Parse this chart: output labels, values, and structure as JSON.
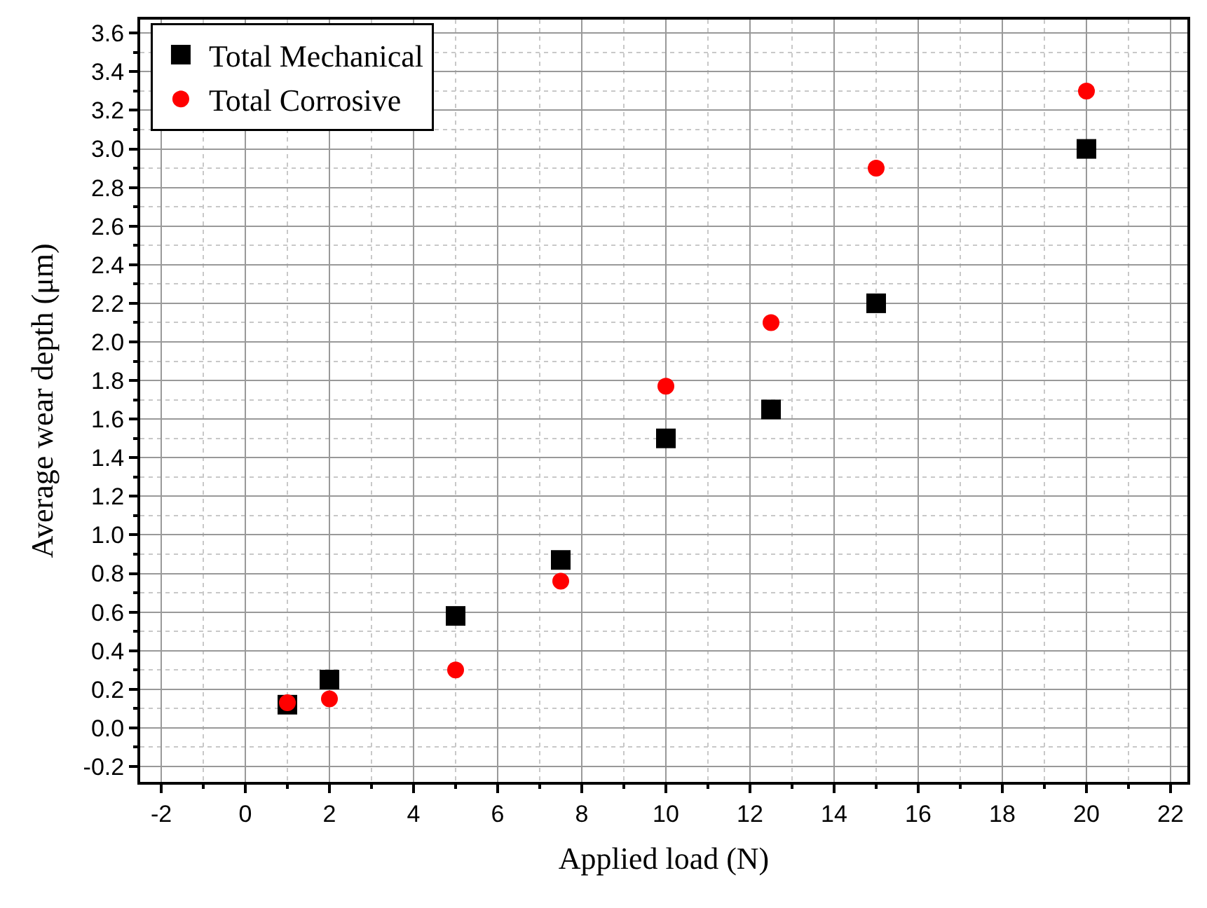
{
  "chart_data": {
    "type": "scatter",
    "xlabel": "Applied load (N)",
    "ylabel": "Average wear depth (μm)",
    "x": [
      1,
      2,
      5,
      7.5,
      10,
      12.5,
      15,
      20
    ],
    "series": [
      {
        "name": "Total Mechanical",
        "color": "#000000",
        "marker": "square",
        "values": [
          0.12,
          0.25,
          0.58,
          0.87,
          1.5,
          1.65,
          2.2,
          3.0
        ]
      },
      {
        "name": "Total Corrosive",
        "color": "#ff0000",
        "marker": "circle",
        "values": [
          0.13,
          0.15,
          0.3,
          0.76,
          1.77,
          2.1,
          2.9,
          3.3
        ]
      }
    ],
    "xlim": [
      -2.5,
      22.4
    ],
    "xticks": [
      -2,
      0,
      2,
      4,
      6,
      8,
      10,
      12,
      14,
      16,
      18,
      20,
      22
    ],
    "ylim": [
      -0.28,
      3.67
    ],
    "yticks": [
      -0.2,
      {
        "value": 0,
        "label": "0.0"
      },
      0.2,
      0.4,
      0.6,
      0.8,
      {
        "value": 1,
        "label": "1.0"
      },
      1.2,
      1.4,
      1.6,
      1.8,
      {
        "value": 2,
        "label": "2.0"
      },
      2.2,
      2.4,
      2.6,
      2.8,
      {
        "value": 3,
        "label": "3.0"
      },
      3.2,
      3.4,
      3.6
    ],
    "grid": true,
    "legend": "top left"
  }
}
